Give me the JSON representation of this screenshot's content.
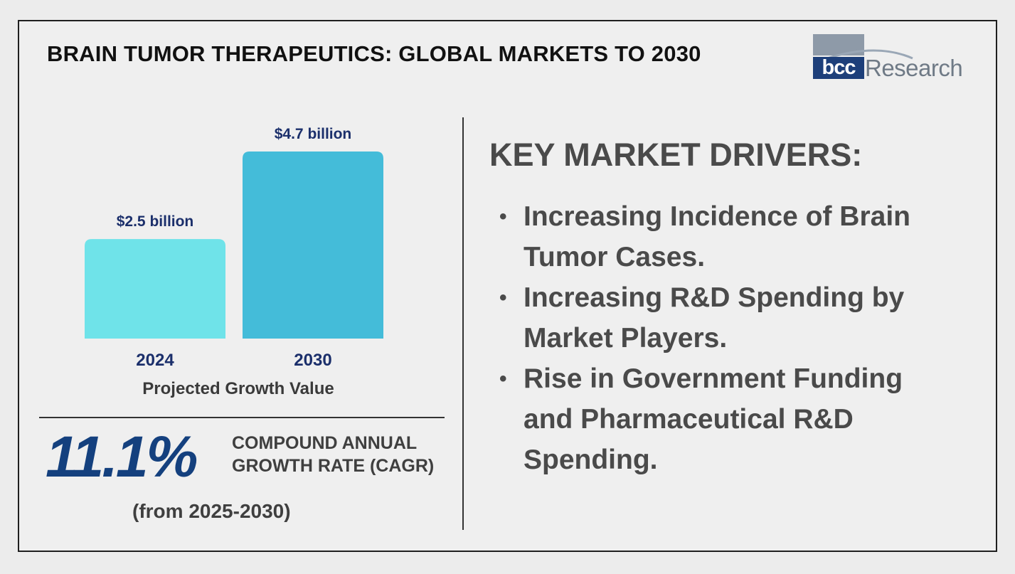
{
  "title": "BRAIN TUMOR THERAPEUTICS: GLOBAL MARKETS TO 2030",
  "logo": {
    "mark": "bcc",
    "text": "Research"
  },
  "chart_data": {
    "type": "bar",
    "categories": [
      "2024",
      "2030"
    ],
    "values": [
      2.5,
      4.7
    ],
    "value_labels": [
      "$2.5 billion",
      "$4.7 billion"
    ],
    "unit": "billion USD",
    "xlabel": "Projected Growth Value",
    "ylabel": "",
    "ylim": [
      0,
      4.7
    ],
    "colors": [
      "#6fe3e9",
      "#44bcd9"
    ],
    "label_color": "#1b2f6b"
  },
  "cagr": {
    "value": "11.1%",
    "label": "COMPOUND ANNUAL GROWTH RATE (CAGR)",
    "period": "(from 2025-2030)"
  },
  "drivers": {
    "heading": "KEY MARKET DRIVERS:",
    "items": [
      "Increasing Incidence of Brain Tumor Cases.",
      "Increasing R&D Spending by Market Players.",
      "Rise in Government Funding and Pharmaceutical R&D Spending."
    ]
  }
}
